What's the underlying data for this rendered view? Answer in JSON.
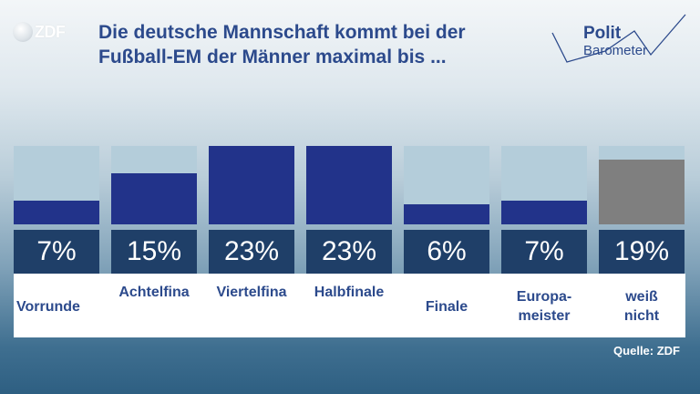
{
  "logo": {
    "text": "ZDF"
  },
  "title": "Die deutsche Mannschaft kommt bei der Fußball-EM der Männer maximal bis ...",
  "brand": {
    "polit": "Polit",
    "barometer": "Barometer"
  },
  "source": "Quelle: ZDF",
  "colors": {
    "bar": "#22338a",
    "dont_know": "#7f7f7f",
    "bar_background": "#b4cdda",
    "value_box": "#1f3f68",
    "title": "#2c4a8c"
  },
  "chart_data": {
    "type": "bar",
    "title": "Die deutsche Mannschaft kommt bei der Fußball-EM der Männer maximal bis ...",
    "xlabel": "",
    "ylabel": "",
    "ylim": [
      0,
      23
    ],
    "categories": [
      "Vorrunde",
      "Achtelfina",
      "Viertelfina",
      "Halbfinale",
      "Finale",
      "Europa-\nmeister",
      "weiß\nnicht"
    ],
    "values": [
      7,
      15,
      23,
      23,
      6,
      7,
      19
    ],
    "value_labels": [
      "7%",
      "15%",
      "23%",
      "23%",
      "6%",
      "7%",
      "19%"
    ],
    "unit": "%",
    "grid": false,
    "legend": "none"
  }
}
